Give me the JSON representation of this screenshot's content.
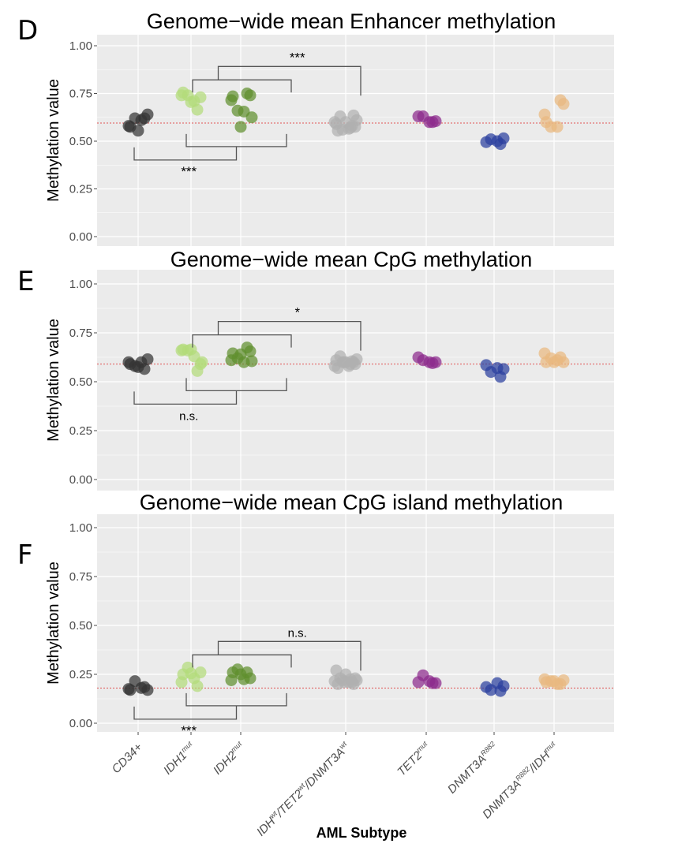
{
  "figure": {
    "xlabel": "AML Subtype",
    "categories": [
      "CD34+",
      "IDH1mut",
      "IDH2mut",
      "IDHwt/TET2wt/DNMT3Awt",
      "TET2mut",
      "DNMT3AR882",
      "DNMT3AR882/IDHmut"
    ],
    "category_labels": [
      [
        {
          "t": "CD34+"
        }
      ],
      [
        {
          "t": "IDH1"
        },
        {
          "t": "mut",
          "sup": true
        }
      ],
      [
        {
          "t": "IDH2"
        },
        {
          "t": "mut",
          "sup": true
        }
      ],
      [
        {
          "t": "IDH"
        },
        {
          "t": "wt",
          "sup": true
        },
        {
          "t": "/TET2"
        },
        {
          "t": "wt",
          "sup": true
        },
        {
          "t": "/DNMT3A"
        },
        {
          "t": "wt",
          "sup": true
        }
      ],
      [
        {
          "t": "TET2"
        },
        {
          "t": "mut",
          "sup": true
        }
      ],
      [
        {
          "t": "DNMT3A"
        },
        {
          "t": "R882",
          "sup": true
        }
      ],
      [
        {
          "t": "DNMT3A"
        },
        {
          "t": "R882",
          "sup": true
        },
        {
          "t": "/IDH"
        },
        {
          "t": "mut",
          "sup": true
        }
      ]
    ],
    "colors": [
      "#333333",
      "#b3db7a",
      "#5f8f2e",
      "#b0b0b0",
      "#8c2a8c",
      "#2a3f9e",
      "#e9b880"
    ],
    "panel_background": "#ebebeb",
    "grid_color": "#ffffff",
    "reference_line_color": "#e05555"
  },
  "chart_data": [
    {
      "type": "scatter",
      "panel_letter": "D",
      "title": "Genome−wide mean Enhancer methylation",
      "ylabel": "Methylation value",
      "ylim": [
        0,
        1
      ],
      "yticks": [
        "0.00",
        "0.25",
        "0.50",
        "0.75",
        "1.00"
      ],
      "reference_line": 0.595,
      "significance": [
        {
          "groups": [
            [
              1,
              2
            ],
            3
          ],
          "label": "***",
          "position": "above"
        },
        {
          "groups": [
            0,
            [
              1,
              2
            ]
          ],
          "label": "***",
          "position": "below"
        }
      ],
      "series": [
        {
          "values": [
            0.575,
            0.61,
            0.62,
            0.64,
            0.62,
            0.58,
            0.555
          ]
        },
        {
          "values": [
            0.755,
            0.71,
            0.74,
            0.73,
            0.665,
            0.74,
            0.705
          ]
        },
        {
          "values": [
            0.735,
            0.655,
            0.66,
            0.74,
            0.75,
            0.715,
            0.575,
            0.625
          ]
        },
        {
          "values": [
            0.555,
            0.565,
            0.56,
            0.575,
            0.58,
            0.59,
            0.6,
            0.61,
            0.63,
            0.635,
            0.6,
            0.57
          ]
        },
        {
          "values": [
            0.63,
            0.6,
            0.63,
            0.605,
            0.6
          ]
        },
        {
          "values": [
            0.495,
            0.5,
            0.51,
            0.515,
            0.485
          ]
        },
        {
          "values": [
            0.6,
            0.575,
            0.575,
            0.695,
            0.715,
            0.64
          ]
        }
      ]
    },
    {
      "type": "scatter",
      "panel_letter": "E",
      "title": "Genome−wide mean CpG methylation",
      "ylabel": "Methylation value",
      "ylim": [
        0,
        1
      ],
      "yticks": [
        "0.00",
        "0.25",
        "0.50",
        "0.75",
        "1.00"
      ],
      "reference_line": 0.59,
      "significance": [
        {
          "groups": [
            [
              1,
              2
            ],
            3
          ],
          "label": "*",
          "position": "above"
        },
        {
          "groups": [
            0,
            [
              1,
              2
            ]
          ],
          "label": "n.s.",
          "position": "below"
        }
      ],
      "series": [
        {
          "values": [
            0.59,
            0.6,
            0.58,
            0.615,
            0.565,
            0.6,
            0.575
          ]
        },
        {
          "values": [
            0.665,
            0.63,
            0.66,
            0.59,
            0.555,
            0.66,
            0.665,
            0.6
          ]
        },
        {
          "values": [
            0.645,
            0.6,
            0.62,
            0.655,
            0.675,
            0.61,
            0.64,
            0.605
          ]
        },
        {
          "values": [
            0.57,
            0.58,
            0.6,
            0.59,
            0.605,
            0.61,
            0.6,
            0.615,
            0.63,
            0.6,
            0.58,
            0.59,
            0.6
          ]
        },
        {
          "values": [
            0.625,
            0.6,
            0.61,
            0.6,
            0.595
          ]
        },
        {
          "values": [
            0.585,
            0.57,
            0.55,
            0.565,
            0.525
          ]
        },
        {
          "values": [
            0.6,
            0.61,
            0.62,
            0.6,
            0.625,
            0.645,
            0.6
          ]
        }
      ]
    },
    {
      "type": "scatter",
      "panel_letter": "F",
      "title": "Genome−wide mean CpG island methylation",
      "ylabel": "Methylation value",
      "ylim": [
        0,
        1
      ],
      "yticks": [
        "0.00",
        "0.25",
        "0.50",
        "0.75",
        "1.00"
      ],
      "reference_line": 0.18,
      "significance": [
        {
          "groups": [
            [
              1,
              2
            ],
            3
          ],
          "label": "n.s.",
          "position": "above"
        },
        {
          "groups": [
            0,
            [
              1,
              2
            ]
          ],
          "label": "***",
          "position": "below"
        }
      ],
      "series": [
        {
          "values": [
            0.17,
            0.18,
            0.215,
            0.17,
            0.185,
            0.175
          ]
        },
        {
          "values": [
            0.25,
            0.23,
            0.285,
            0.26,
            0.19,
            0.21,
            0.255
          ]
        },
        {
          "values": [
            0.26,
            0.225,
            0.275,
            0.23,
            0.26,
            0.22,
            0.25
          ]
        },
        {
          "values": [
            0.2,
            0.21,
            0.22,
            0.23,
            0.21,
            0.27,
            0.25,
            0.22,
            0.23,
            0.2,
            0.215,
            0.225,
            0.21
          ]
        },
        {
          "values": [
            0.21,
            0.215,
            0.245,
            0.205,
            0.205
          ]
        },
        {
          "values": [
            0.185,
            0.205,
            0.17,
            0.19,
            0.165
          ]
        },
        {
          "values": [
            0.21,
            0.2,
            0.215,
            0.22,
            0.2,
            0.225,
            0.215
          ]
        }
      ]
    }
  ]
}
